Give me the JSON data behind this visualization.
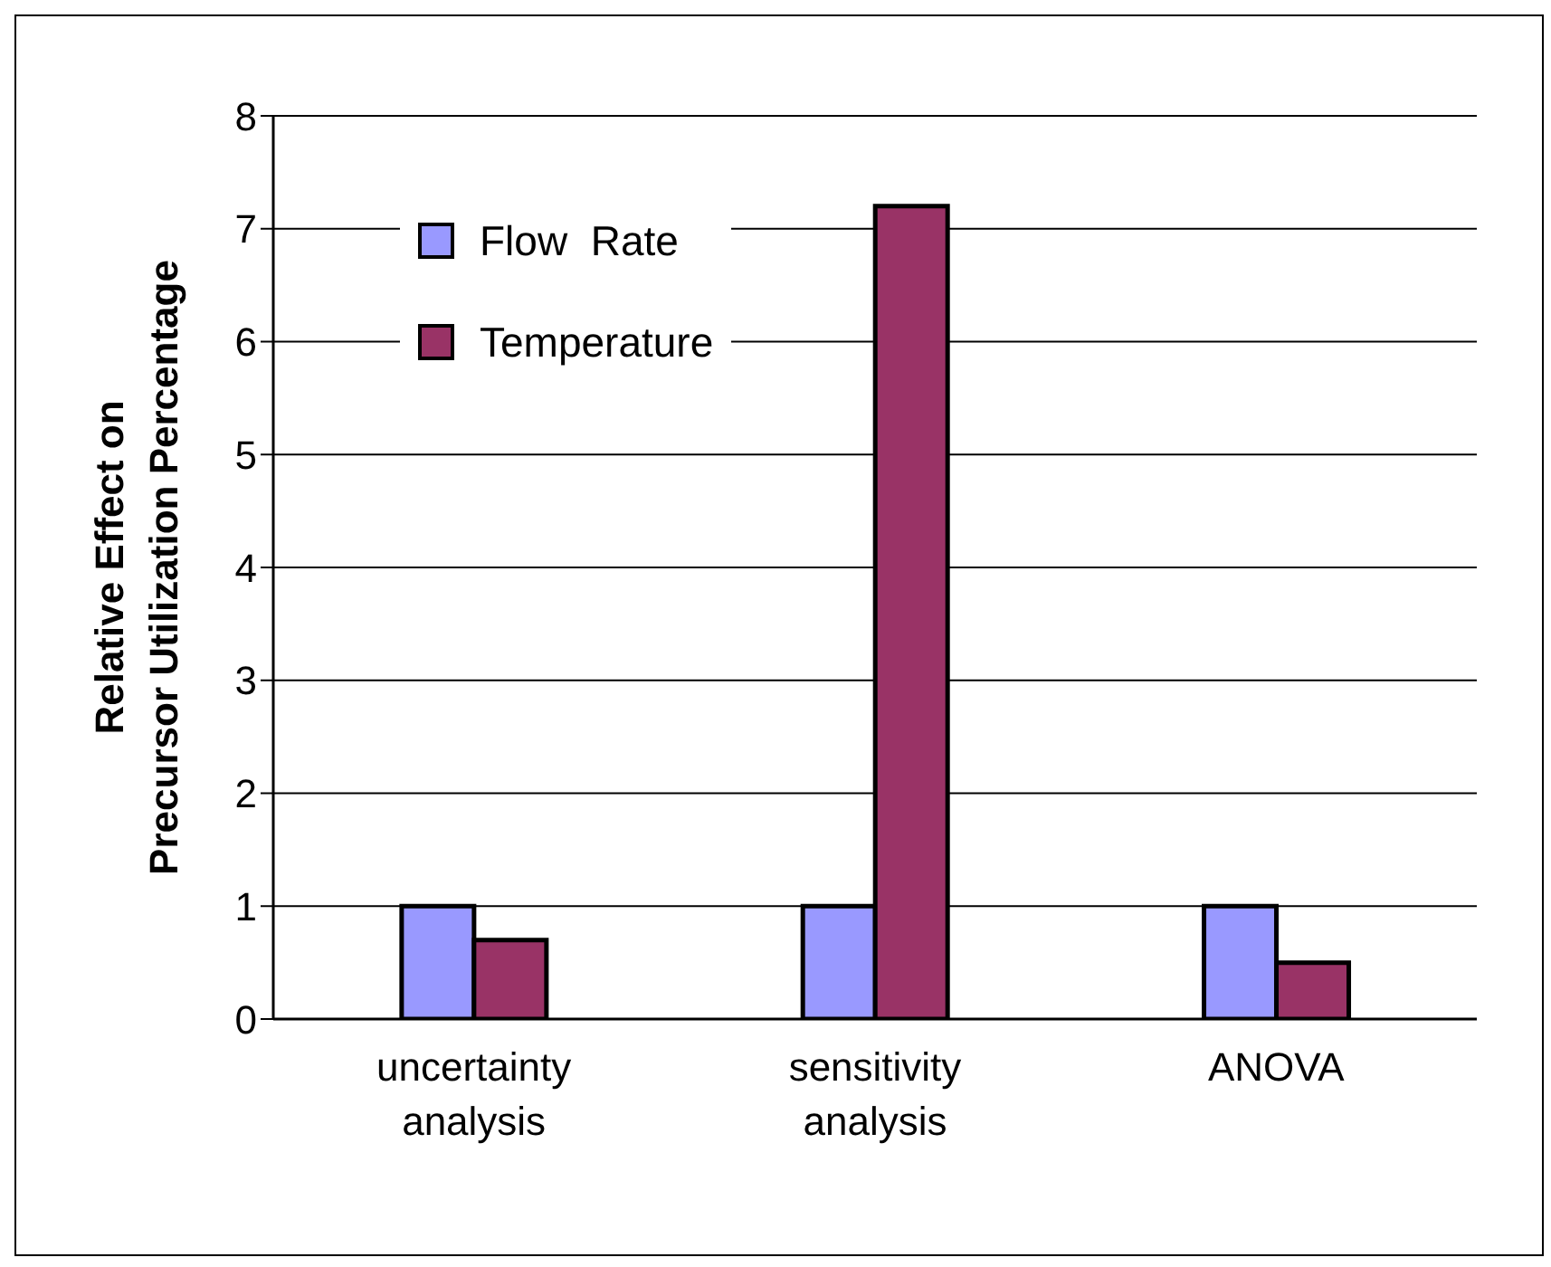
{
  "chart_data": {
    "type": "bar",
    "ylabel": "Relative Effect on\nPrecursor Utilization Percentage",
    "categories": [
      "uncertainty analysis",
      "sensitivity analysis",
      "ANOVA"
    ],
    "series": [
      {
        "name": "Flow  Rate",
        "color": "#9999ff",
        "values": [
          1,
          1,
          1
        ]
      },
      {
        "name": "Temperature",
        "color": "#993366",
        "values": [
          0.7,
          7.2,
          0.5
        ]
      }
    ],
    "ylim": [
      0,
      8
    ],
    "yticks": [
      0,
      1,
      2,
      3,
      4,
      5,
      6,
      7,
      8
    ],
    "grid": "y",
    "legend": "top left"
  }
}
